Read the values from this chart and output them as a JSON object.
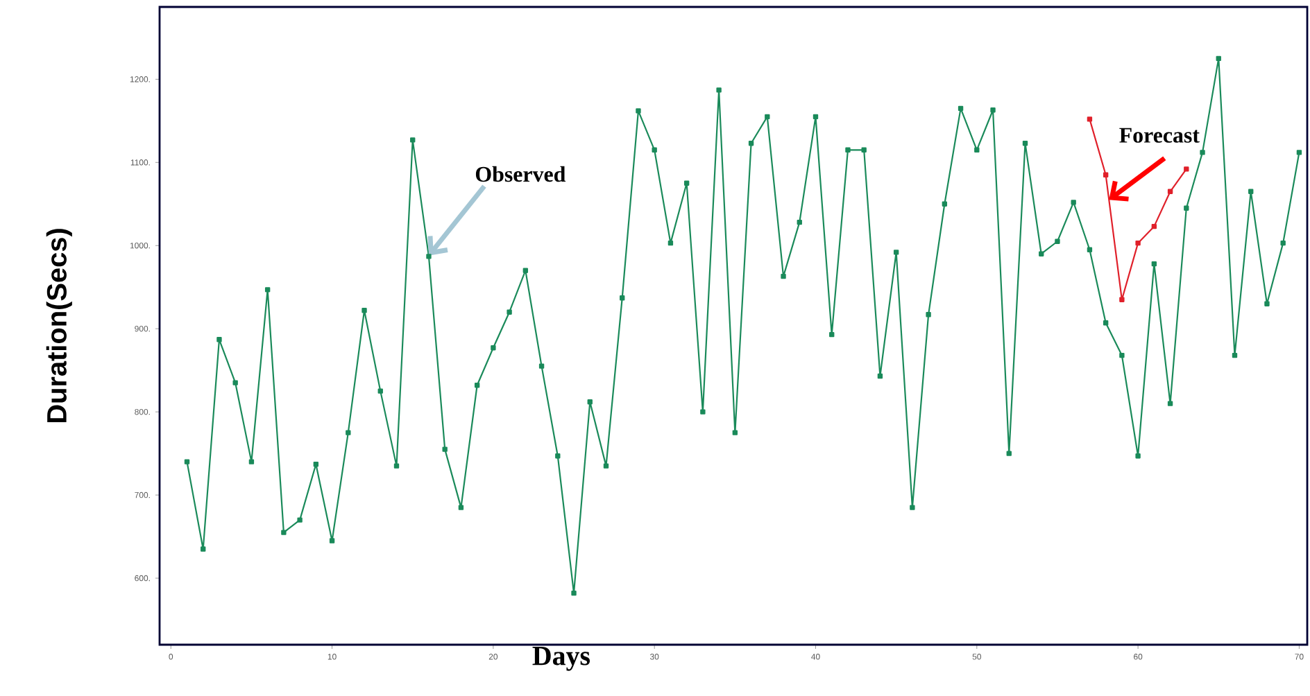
{
  "chart_data": {
    "type": "line",
    "xlabel": "Days",
    "ylabel": "Duration(Secs)",
    "xlim": [
      -0.7,
      70.5
    ],
    "ylim": [
      520,
      1287
    ],
    "xticks": [
      0,
      10,
      20,
      30,
      40,
      50,
      60,
      70
    ],
    "yticks": [
      {
        "value": 600,
        "label": "600."
      },
      {
        "value": 700,
        "label": "700."
      },
      {
        "value": 800,
        "label": "800."
      },
      {
        "value": 900,
        "label": "900."
      },
      {
        "value": 1000,
        "label": "1000."
      },
      {
        "value": 1100,
        "label": "1100."
      },
      {
        "value": 1200,
        "label": "1200."
      }
    ],
    "marker": "square",
    "line_style": "solid",
    "grid": false,
    "series": [
      {
        "color": "#1a8a5a",
        "x": [
          1,
          2,
          3,
          4,
          5,
          6,
          7,
          8,
          9,
          10,
          11,
          12,
          13,
          14,
          15,
          16,
          17,
          18,
          19,
          20,
          21,
          22,
          23,
          24,
          25,
          26,
          27,
          28,
          29,
          30,
          31,
          32,
          33,
          34,
          35,
          36,
          37,
          38,
          39,
          40,
          41,
          42,
          43,
          44,
          45,
          46,
          47,
          48,
          49,
          50,
          51,
          52,
          53,
          54,
          55,
          56,
          57,
          58,
          59,
          60,
          61,
          62,
          63,
          64,
          65,
          66,
          67,
          68,
          69,
          70
        ],
        "values": [
          740,
          635,
          887,
          835,
          740,
          947,
          655,
          670,
          737,
          645,
          775,
          922,
          825,
          735,
          1127,
          987,
          755,
          685,
          832,
          877,
          920,
          970,
          855,
          747,
          582,
          812,
          735,
          937,
          1162,
          1115,
          1003,
          1075,
          800,
          1187,
          775,
          1123,
          1155,
          963,
          1028,
          1155,
          893,
          1115,
          1115,
          843,
          992,
          685,
          917,
          1050,
          1165,
          1115,
          1163,
          750,
          1123,
          990,
          1005,
          1052,
          995,
          907,
          868,
          747,
          978,
          810,
          1045,
          1112,
          1225,
          868,
          1065,
          930,
          1003,
          1112
        ]
      },
      {
        "color": "#e0202a",
        "x": [
          57,
          58,
          59,
          60,
          61,
          62,
          63
        ],
        "values": [
          1152,
          1085,
          935,
          1003,
          1023,
          1065,
          1092
        ]
      }
    ],
    "annotations": [
      {
        "text": "Observed",
        "x": 16,
        "y": 988
      },
      {
        "text": "Forecast",
        "x": 58.2,
        "y": 1055
      }
    ]
  }
}
